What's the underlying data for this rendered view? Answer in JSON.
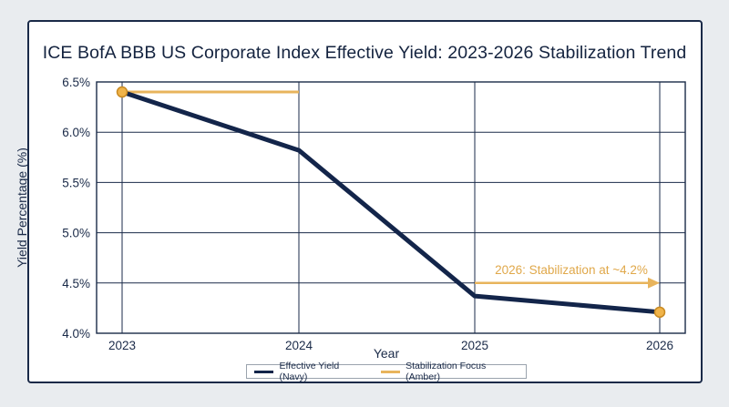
{
  "chart_data": {
    "type": "line",
    "title": "ICE BofA BBB US Corporate Index Effective Yield: 2023-2026 Stabilization Trend",
    "xlabel": "Year",
    "ylabel": "Yield Percentage (%)",
    "x": [
      "2023",
      "2024",
      "2025",
      "2026"
    ],
    "yticks": [
      "4.0%",
      "4.5%",
      "5.0%",
      "5.5%",
      "6.0%",
      "6.5%"
    ],
    "ylim": [
      4.0,
      6.5
    ],
    "grid": true,
    "legend_position": "bottom-center",
    "series": [
      {
        "name": "Effective Yield (Navy)",
        "values": [
          6.4,
          5.82,
          4.37,
          4.21
        ],
        "color": "#13254a"
      }
    ],
    "stabilization_focus": {
      "name": "Stabilization Focus (Amber)",
      "color": "#e8b45c",
      "marker_color": "#f0b44a"
    },
    "annotation": "2026: Stabilization at ~4.2%"
  }
}
